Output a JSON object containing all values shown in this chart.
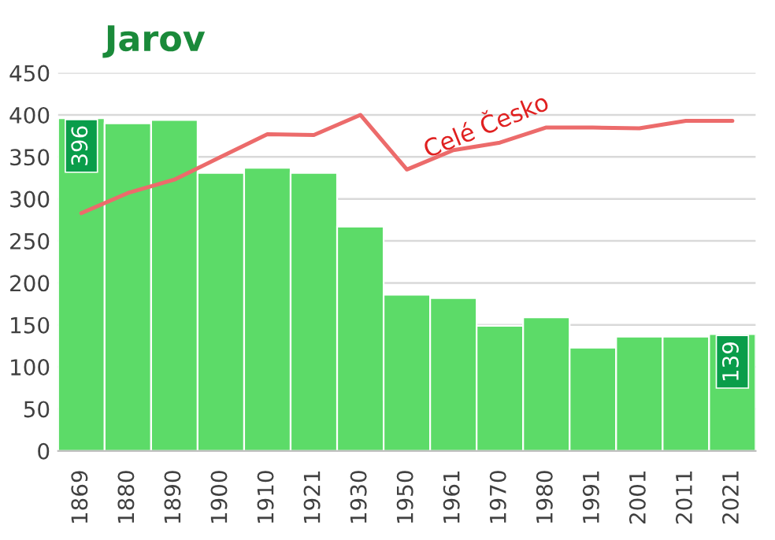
{
  "chart_data": {
    "type": "bar",
    "title": "Jarov",
    "categories": [
      "1869",
      "1880",
      "1890",
      "1900",
      "1910",
      "1921",
      "1930",
      "1950",
      "1961",
      "1970",
      "1980",
      "1991",
      "2001",
      "2011",
      "2021"
    ],
    "series": [
      {
        "color": "#5cdb68",
        "values": [
          396,
          390,
          394,
          331,
          337,
          331,
          267,
          186,
          182,
          149,
          159,
          123,
          136,
          136,
          139
        ],
        "value_labels": [
          "396",
          null,
          null,
          null,
          null,
          null,
          null,
          null,
          null,
          null,
          null,
          null,
          null,
          null,
          "139"
        ]
      },
      {
        "type": "line",
        "name": "Celé Česko",
        "color": "#ec6b6b",
        "values": [
          283,
          307,
          323,
          350,
          377,
          376,
          400,
          335,
          358,
          367,
          385,
          385,
          384,
          393,
          393
        ]
      }
    ],
    "ylim": [
      0,
      450
    ],
    "yticks": [
      0,
      50,
      100,
      150,
      200,
      250,
      300,
      350,
      400,
      450
    ],
    "grid": "y",
    "legend": false
  }
}
